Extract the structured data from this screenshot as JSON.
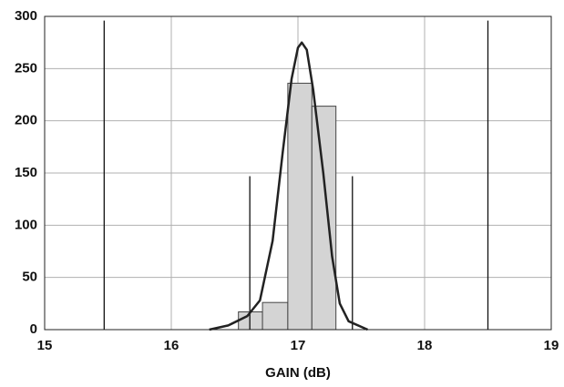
{
  "chart_data": {
    "type": "histogram",
    "xlabel": "GAIN (dB)",
    "bins": [
      16.53,
      16.72,
      16.92,
      17.11,
      17.3
    ],
    "counts": [
      17,
      26,
      236,
      214
    ],
    "color": "#d4d4d4",
    "curve": {
      "x": [
        16.3,
        16.45,
        16.6,
        16.7,
        16.8,
        16.88,
        16.95,
        17.0,
        17.03,
        17.07,
        17.12,
        17.2,
        17.27,
        17.33,
        17.4,
        17.55
      ],
      "y": [
        0,
        4,
        13,
        28,
        85,
        170,
        240,
        270,
        275,
        268,
        230,
        150,
        70,
        25,
        8,
        0
      ],
      "color": "#222222"
    },
    "vlines": [
      {
        "x": 15.47,
        "y": 296
      },
      {
        "x": 16.62,
        "y": 147
      },
      {
        "x": 17.43,
        "y": 147
      },
      {
        "x": 18.5,
        "y": 296
      }
    ],
    "xlim": [
      15,
      19
    ],
    "ylim": [
      0,
      300
    ],
    "xticks": [
      15,
      16,
      17,
      18,
      19
    ],
    "yticks": [
      0,
      50,
      100,
      150,
      200,
      250,
      300
    ],
    "grid": true
  }
}
